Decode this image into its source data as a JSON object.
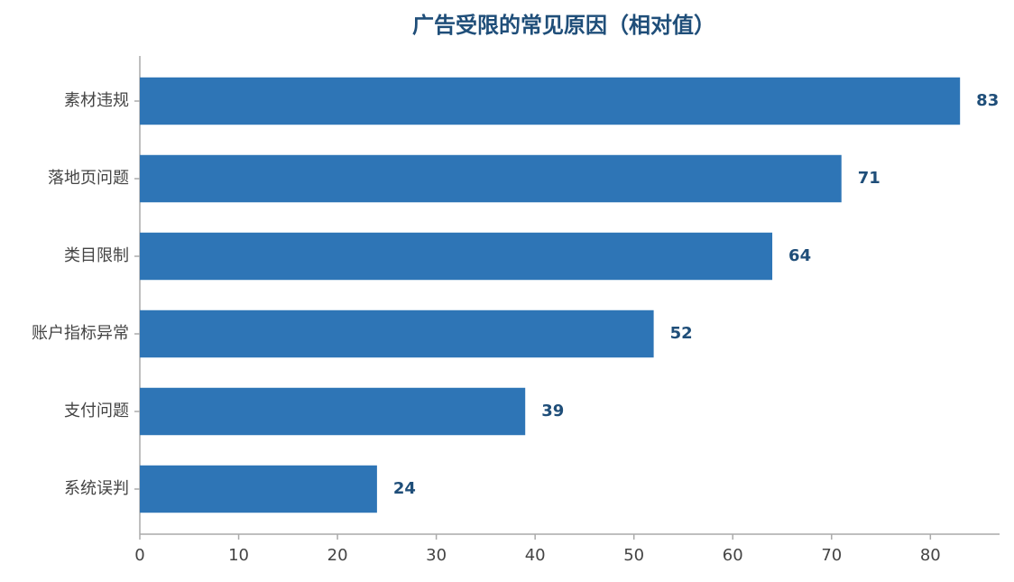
{
  "chart_data": {
    "type": "barh",
    "title": "广告受限的常见原因（相对值）",
    "categories": [
      "素材违规",
      "落地页问题",
      "类目限制",
      "账户指标异常",
      "支付问题",
      "系统误判"
    ],
    "values": [
      83,
      71,
      64,
      52,
      39,
      24
    ],
    "color": "#2e75b6",
    "xlim": [
      0,
      87
    ],
    "xticks": [
      0,
      10,
      20,
      30,
      40,
      50,
      60,
      70,
      80
    ],
    "grid": false
  }
}
